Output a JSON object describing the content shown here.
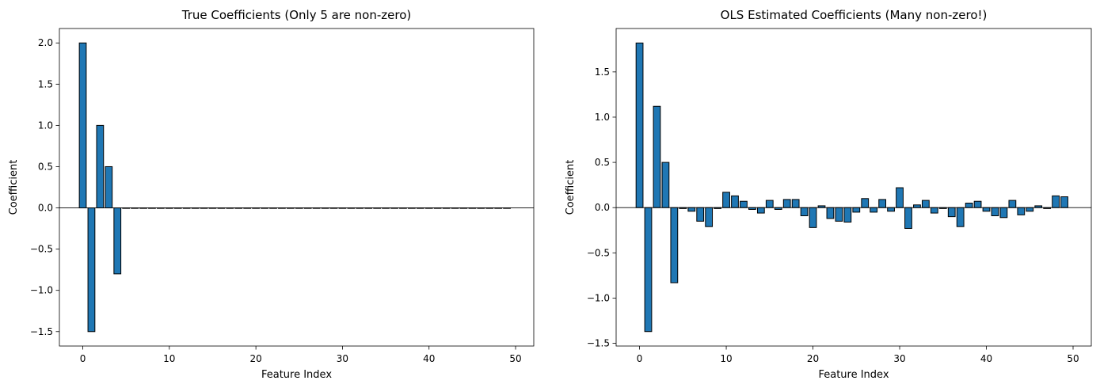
{
  "chart_data": [
    {
      "type": "bar",
      "title": "True Coefficients (Only 5 are non-zero)",
      "xlabel": "Feature Index",
      "ylabel": "Coefficient",
      "x": [
        0,
        1,
        2,
        3,
        4,
        5,
        6,
        7,
        8,
        9,
        10,
        11,
        12,
        13,
        14,
        15,
        16,
        17,
        18,
        19,
        20,
        21,
        22,
        23,
        24,
        25,
        26,
        27,
        28,
        29,
        30,
        31,
        32,
        33,
        34,
        35,
        36,
        37,
        38,
        39,
        40,
        41,
        42,
        43,
        44,
        45,
        46,
        47,
        48,
        49
      ],
      "values": [
        2.0,
        -1.5,
        1.0,
        0.5,
        -0.8,
        0,
        0,
        0,
        0,
        0,
        0,
        0,
        0,
        0,
        0,
        0,
        0,
        0,
        0,
        0,
        0,
        0,
        0,
        0,
        0,
        0,
        0,
        0,
        0,
        0,
        0,
        0,
        0,
        0,
        0,
        0,
        0,
        0,
        0,
        0,
        0,
        0,
        0,
        0,
        0,
        0,
        0,
        0,
        0,
        0
      ],
      "xlim": [
        -2.7,
        52.1
      ],
      "ylim": [
        -1.675,
        2.175
      ],
      "xticks": [
        0,
        10,
        20,
        30,
        40,
        50
      ],
      "yticks": [
        -1.5,
        -1.0,
        -0.5,
        0.0,
        0.5,
        1.0,
        1.5,
        2.0
      ],
      "xtick_labels": [
        "0",
        "10",
        "20",
        "30",
        "40",
        "50"
      ],
      "ytick_labels": [
        "−1.5",
        "−1.0",
        "−0.5",
        "0.0",
        "0.5",
        "1.0",
        "1.5",
        "2.0"
      ],
      "zero_line": true,
      "grid": false,
      "bar_color": "#1f77b4",
      "edge_color": "#000000"
    },
    {
      "type": "bar",
      "title": "OLS Estimated Coefficients (Many non-zero!)",
      "xlabel": "Feature Index",
      "ylabel": "Coefficient",
      "x": [
        0,
        1,
        2,
        3,
        4,
        5,
        6,
        7,
        8,
        9,
        10,
        11,
        12,
        13,
        14,
        15,
        16,
        17,
        18,
        19,
        20,
        21,
        22,
        23,
        24,
        25,
        26,
        27,
        28,
        29,
        30,
        31,
        32,
        33,
        34,
        35,
        36,
        37,
        38,
        39,
        40,
        41,
        42,
        43,
        44,
        45,
        46,
        47,
        48,
        49
      ],
      "values": [
        1.82,
        -1.37,
        1.12,
        0.5,
        -0.83,
        -0.01,
        -0.04,
        -0.15,
        -0.21,
        -0.01,
        0.17,
        0.13,
        0.07,
        -0.02,
        -0.06,
        0.08,
        -0.02,
        0.09,
        0.09,
        -0.09,
        -0.22,
        0.02,
        -0.12,
        -0.15,
        -0.16,
        -0.05,
        0.1,
        -0.05,
        0.09,
        -0.04,
        0.22,
        -0.23,
        0.03,
        0.08,
        -0.06,
        -0.01,
        -0.1,
        -0.21,
        0.05,
        0.07,
        -0.04,
        -0.09,
        -0.11,
        0.08,
        -0.08,
        -0.04,
        0.02,
        -0.01,
        0.13,
        0.12
      ],
      "xlim": [
        -2.7,
        52.1
      ],
      "ylim": [
        -1.53,
        1.98
      ],
      "xticks": [
        0,
        10,
        20,
        30,
        40,
        50
      ],
      "yticks": [
        -1.5,
        -1.0,
        -0.5,
        0.0,
        0.5,
        1.0,
        1.5
      ],
      "xtick_labels": [
        "0",
        "10",
        "20",
        "30",
        "40",
        "50"
      ],
      "ytick_labels": [
        "−1.5",
        "−1.0",
        "−0.5",
        "0.0",
        "0.5",
        "1.0",
        "1.5"
      ],
      "zero_line": true,
      "grid": false,
      "bar_color": "#1f77b4",
      "edge_color": "#000000"
    }
  ]
}
